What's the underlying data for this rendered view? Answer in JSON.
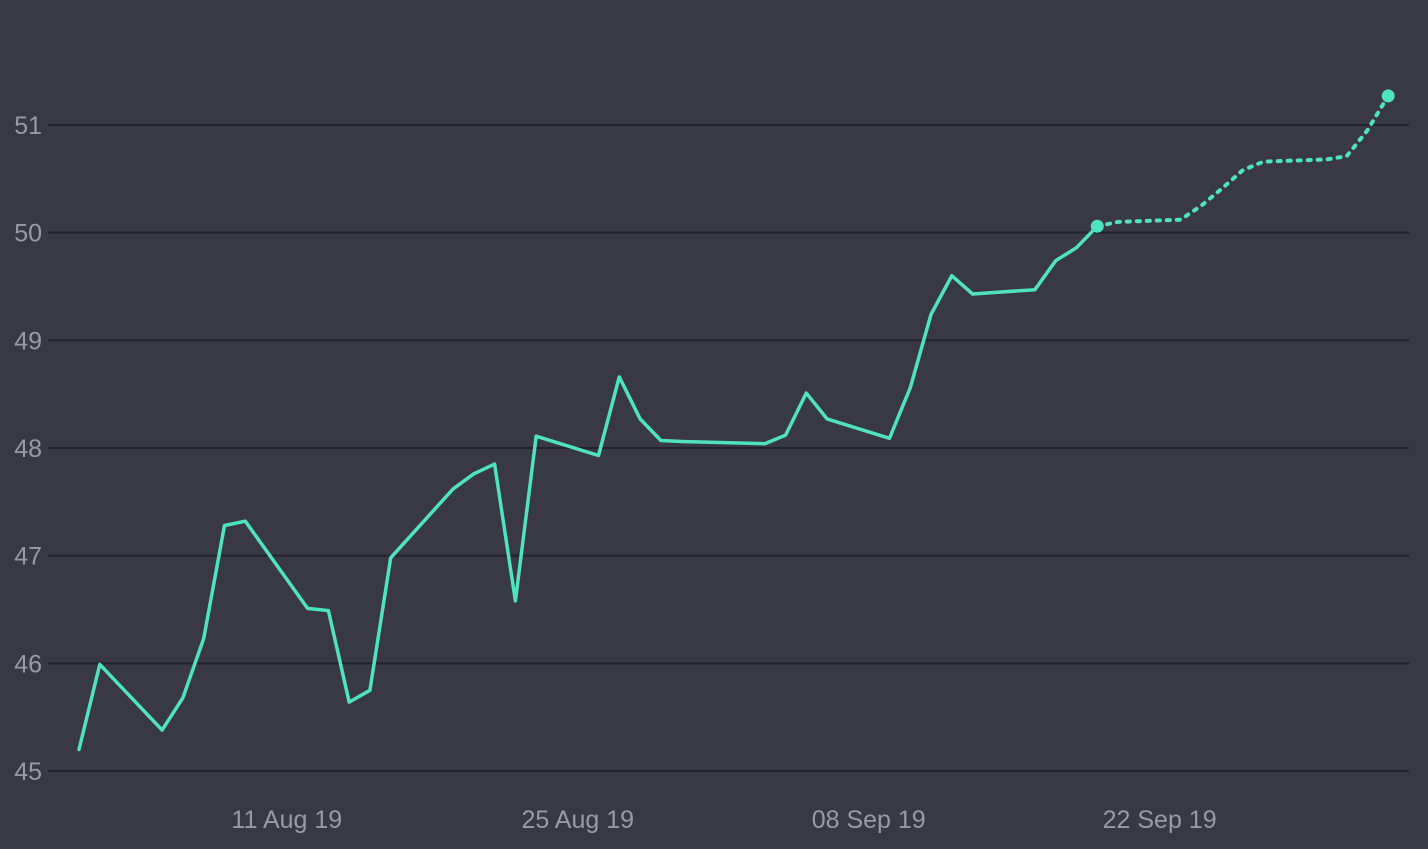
{
  "chart_data": {
    "type": "line",
    "title": "",
    "xlabel": "",
    "ylabel": "",
    "grid": true,
    "legend": "none",
    "line_color": "#4fe3bf",
    "background_color": "#393944",
    "grid_color": "#23232b",
    "label_color": "#9a9aa6",
    "ylim": [
      45,
      51
    ],
    "yticks": [
      45,
      46,
      47,
      48,
      49,
      50,
      51
    ],
    "xlim": [
      "2019-08-01",
      "2019-10-04"
    ],
    "xticks": [
      {
        "date": "2019-08-11",
        "label": "11 Aug 19"
      },
      {
        "date": "2019-08-25",
        "label": "25 Aug 19"
      },
      {
        "date": "2019-09-08",
        "label": "08 Sep 19"
      },
      {
        "date": "2019-09-22",
        "label": "22 Sep 19"
      }
    ],
    "series": [
      {
        "style": "solid",
        "x": [
          "2019-08-01",
          "2019-08-02",
          "2019-08-05",
          "2019-08-06",
          "2019-08-07",
          "2019-08-08",
          "2019-08-09",
          "2019-08-12",
          "2019-08-13",
          "2019-08-14",
          "2019-08-15",
          "2019-08-16",
          "2019-08-19",
          "2019-08-20",
          "2019-08-21",
          "2019-08-22",
          "2019-08-23",
          "2019-08-26",
          "2019-08-27",
          "2019-08-28",
          "2019-08-29",
          "2019-08-30",
          "2019-09-03",
          "2019-09-04",
          "2019-09-05",
          "2019-09-06",
          "2019-09-09",
          "2019-09-10",
          "2019-09-11",
          "2019-09-12",
          "2019-09-13",
          "2019-09-16",
          "2019-09-17",
          "2019-09-18",
          "2019-09-19"
        ],
        "values": [
          45.2,
          45.99,
          45.38,
          45.68,
          46.23,
          47.28,
          47.32,
          46.51,
          46.49,
          45.64,
          45.75,
          46.98,
          47.62,
          47.76,
          47.85,
          46.58,
          48.11,
          47.93,
          48.66,
          48.27,
          48.07,
          48.06,
          48.04,
          48.12,
          48.51,
          48.27,
          48.09,
          48.56,
          49.24,
          49.6,
          49.43,
          49.47,
          49.74,
          49.86,
          50.06
        ]
      },
      {
        "style": "dotted",
        "x": [
          "2019-09-19",
          "2019-09-20",
          "2019-09-23",
          "2019-09-24",
          "2019-09-25",
          "2019-09-26",
          "2019-09-27",
          "2019-09-30",
          "2019-10-01",
          "2019-10-02",
          "2019-10-03"
        ],
        "values": [
          50.06,
          50.1,
          50.12,
          50.25,
          50.41,
          50.58,
          50.66,
          50.68,
          50.71,
          50.95,
          51.27
        ]
      }
    ]
  }
}
